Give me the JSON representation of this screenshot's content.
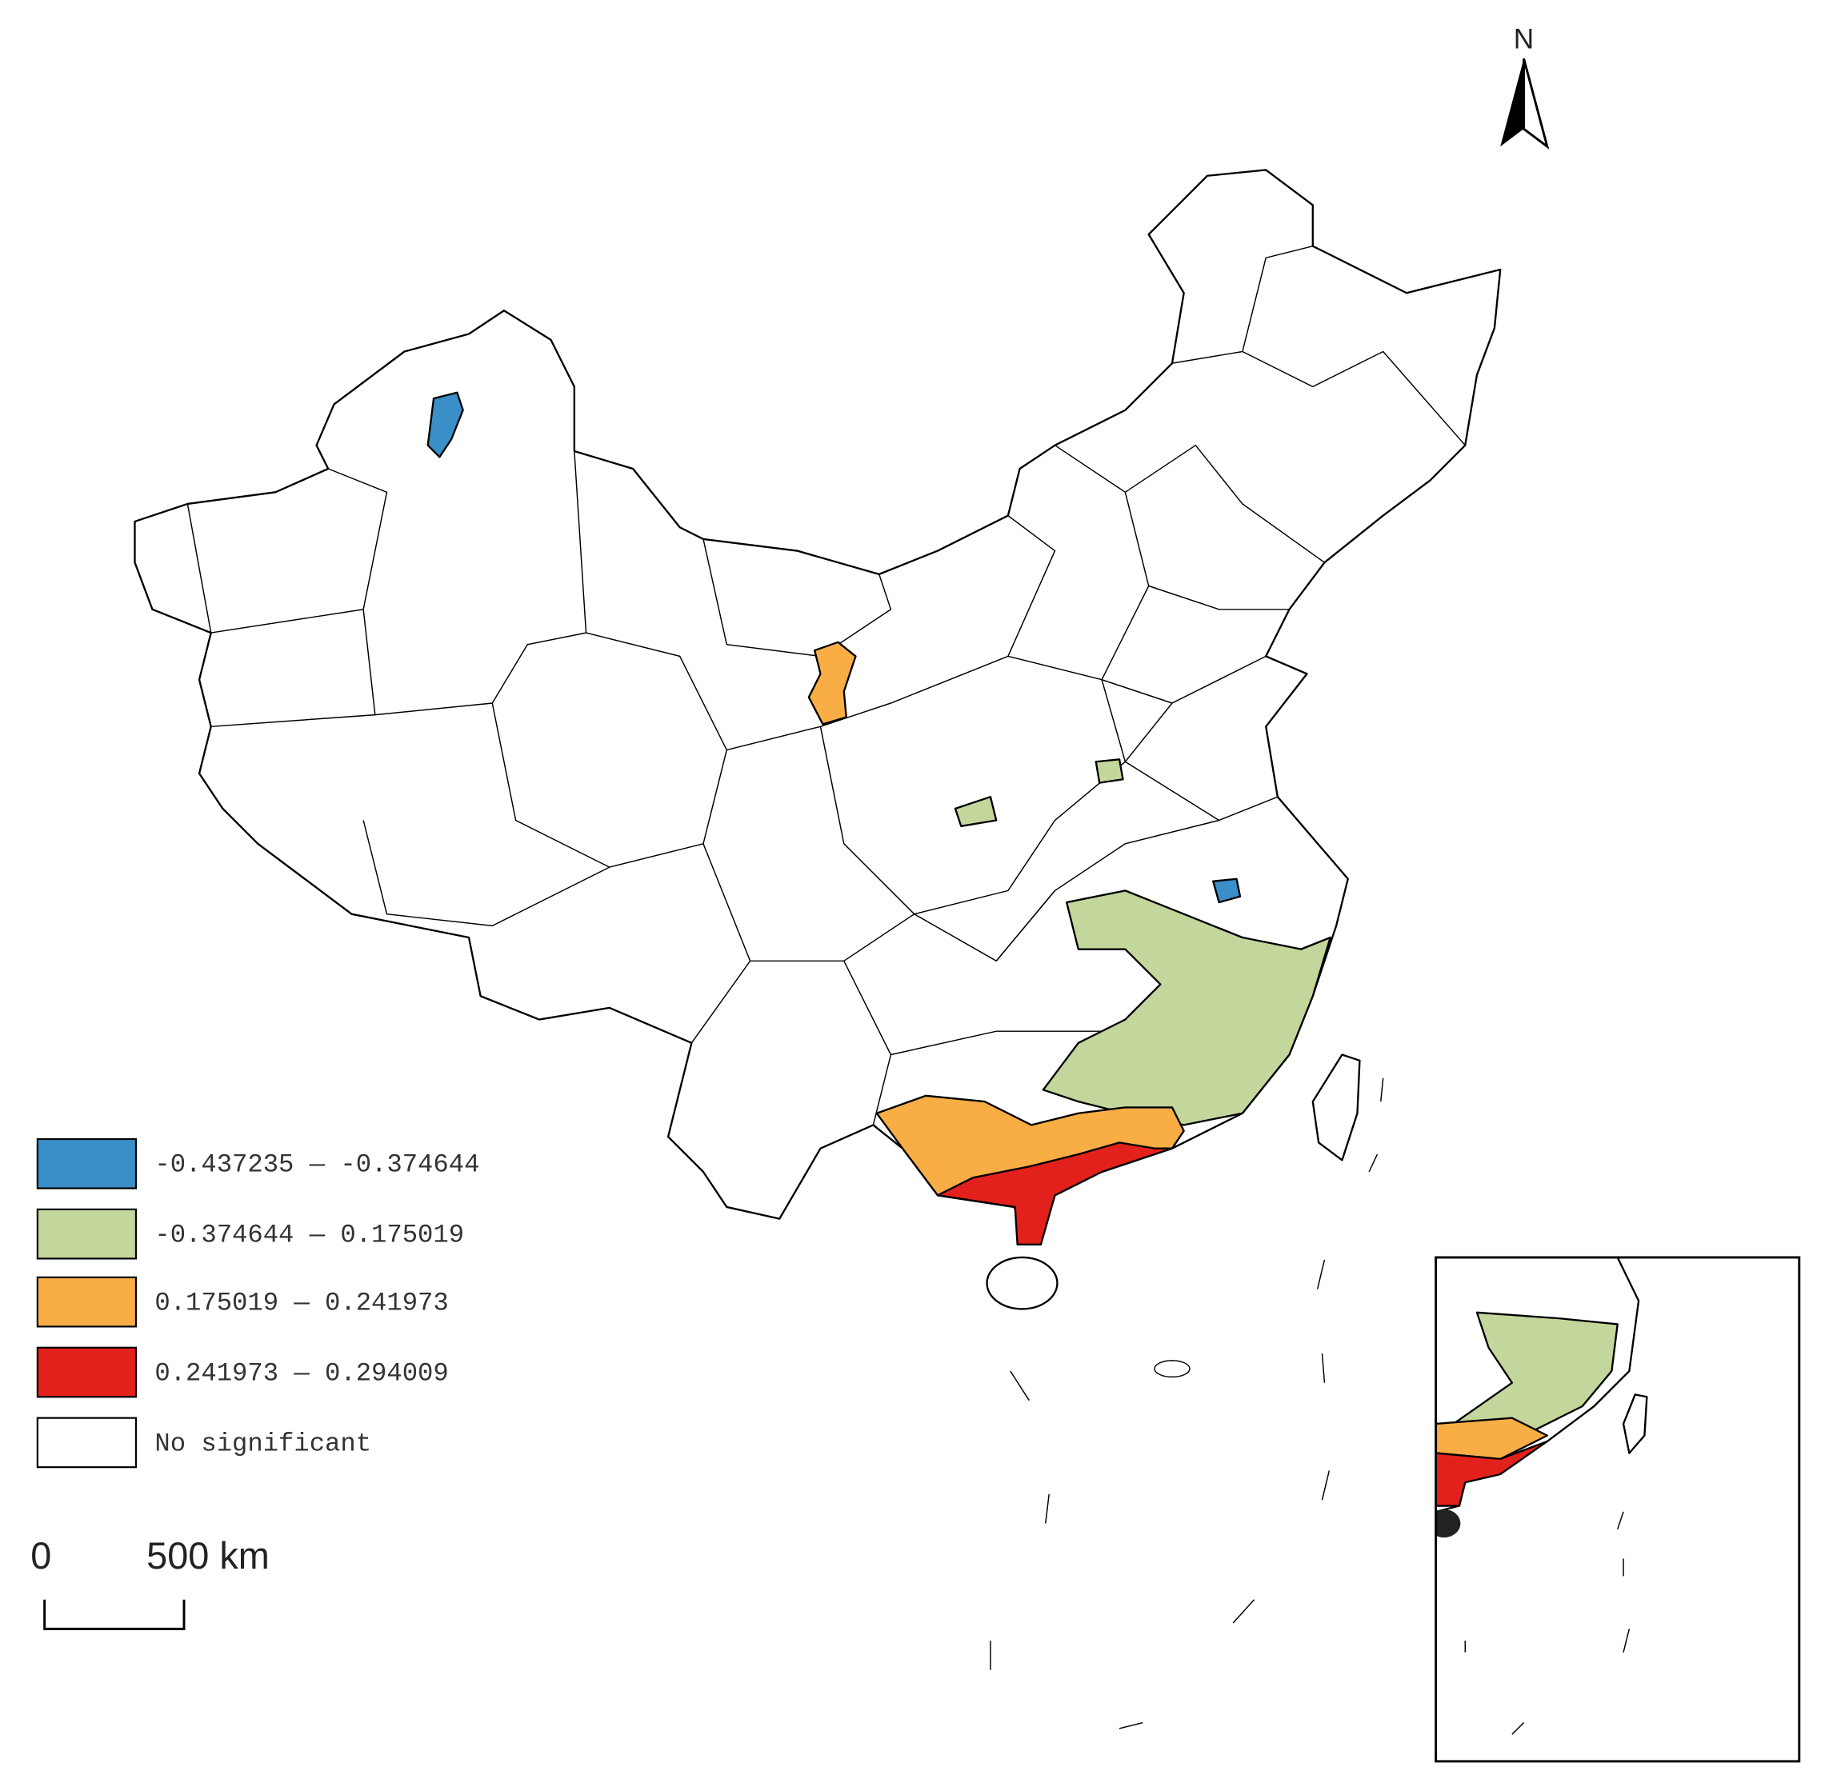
{
  "north_label": "N",
  "legend": {
    "items": [
      {
        "label": "-0.437235 — -0.374644",
        "color": "#3a8fc8"
      },
      {
        "label": "-0.374644 — 0.175019",
        "color": "#c3d69b"
      },
      {
        "label": "0.175019 — 0.241973",
        "color": "#f9ae45"
      },
      {
        "label": "0.241973 — 0.294009",
        "color": "#e3211c"
      },
      {
        "label": "No significant",
        "color": "#ffffff"
      }
    ]
  },
  "scale_bar": {
    "labels": [
      "0",
      "500 km"
    ]
  }
}
